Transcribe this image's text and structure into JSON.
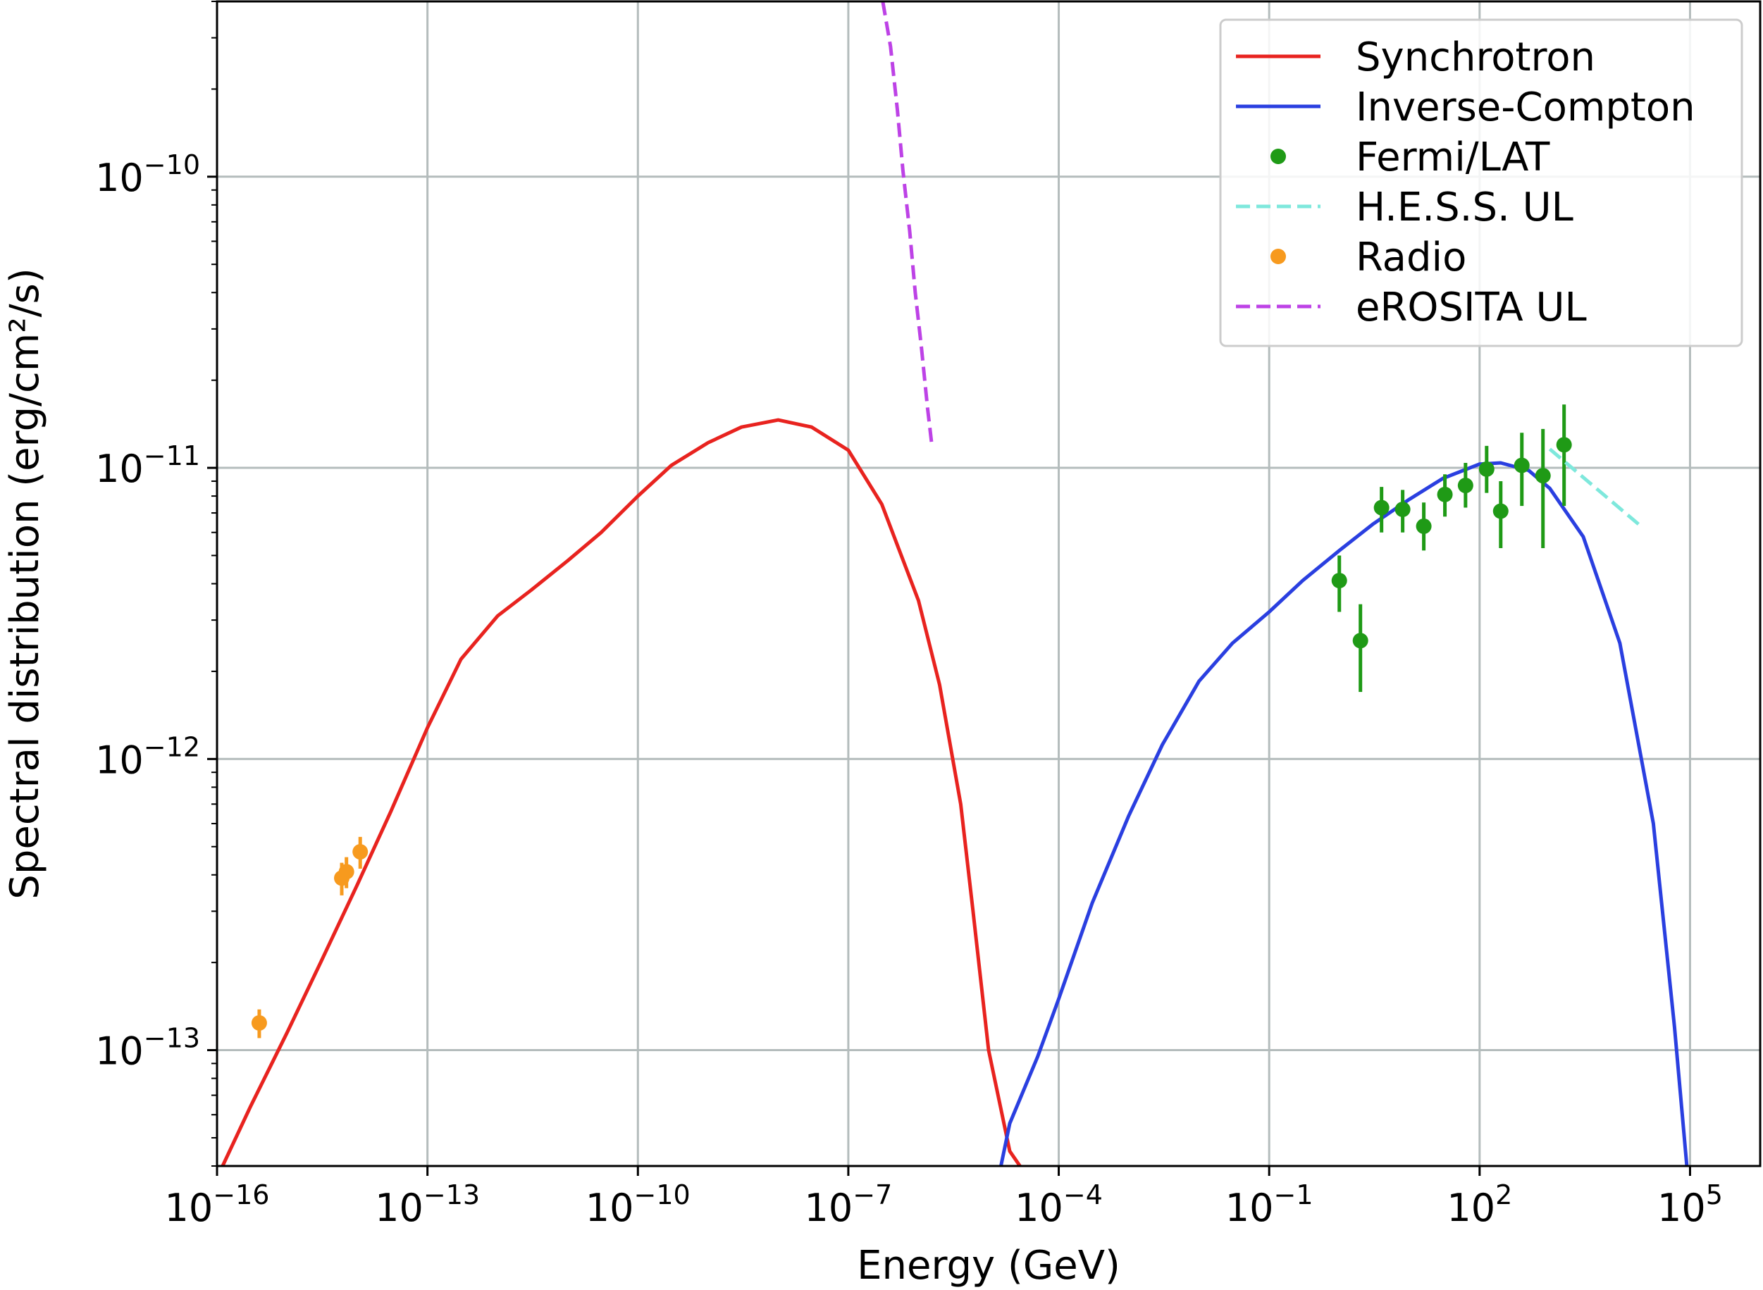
{
  "chart_data": {
    "type": "line",
    "xlabel": "Energy (GeV)",
    "ylabel": "Spectral distribution (erg/cm²/s)",
    "xscale": "log",
    "yscale": "log",
    "xlim": [
      1e-16,
      1000000.0
    ],
    "ylim": [
      4e-14,
      4e-10
    ],
    "grid": true,
    "legend_position": "top-right",
    "colors": {
      "synchrotron": "#e8231f",
      "inverse_compton": "#2a3fe0",
      "fermi": "#1f9a16",
      "hess": "#7ee8dc",
      "radio": "#f79a1e",
      "erosita": "#bd42e6",
      "grid": "#b4bcbc"
    },
    "x_ticks": [
      {
        "base": "10",
        "exp": "−16",
        "value": 1e-16
      },
      {
        "base": "10",
        "exp": "−13",
        "value": 1e-13
      },
      {
        "base": "10",
        "exp": "−10",
        "value": 1e-10
      },
      {
        "base": "10",
        "exp": "−7",
        "value": 1e-07
      },
      {
        "base": "10",
        "exp": "−4",
        "value": 0.0001
      },
      {
        "base": "10",
        "exp": "−1",
        "value": 0.1
      },
      {
        "base": "10",
        "exp": "2",
        "value": 100.0
      },
      {
        "base": "10",
        "exp": "5",
        "value": 100000.0
      }
    ],
    "y_ticks": [
      {
        "base": "10",
        "exp": "−10",
        "value": 1e-10
      },
      {
        "base": "10",
        "exp": "−11",
        "value": 1e-11
      },
      {
        "base": "10",
        "exp": "−12",
        "value": 1e-12
      },
      {
        "base": "10",
        "exp": "−13",
        "value": 1e-13
      }
    ],
    "series": [
      {
        "name": "Synchrotron",
        "kind": "line",
        "color_key": "synchrotron",
        "x": [
          1.2e-16,
          3e-16,
          1e-15,
          3e-15,
          1e-14,
          3e-14,
          1e-13,
          3e-13,
          1e-12,
          3e-12,
          1e-11,
          3e-11,
          1e-10,
          3e-10,
          1e-09,
          3e-09,
          1e-08,
          3e-08,
          1e-07,
          3e-07,
          1e-06,
          2e-06,
          4e-06,
          6e-06,
          1e-05,
          2e-05,
          2.8e-05
        ],
        "y": [
          4e-14,
          6.4e-14,
          1.15e-13,
          2e-13,
          3.7e-13,
          6.6e-13,
          1.28e-12,
          2.2e-12,
          3.1e-12,
          3.8e-12,
          4.8e-12,
          6e-12,
          8e-12,
          1.02e-11,
          1.22e-11,
          1.38e-11,
          1.46e-11,
          1.38e-11,
          1.15e-11,
          7.5e-12,
          3.5e-12,
          1.8e-12,
          7e-13,
          3e-13,
          1e-13,
          4.5e-14,
          4e-14
        ]
      },
      {
        "name": "Inverse-Compton",
        "kind": "line",
        "color_key": "inverse_compton",
        "x": [
          1.5e-05,
          2e-05,
          5e-05,
          0.0001,
          0.0003,
          0.001,
          0.003,
          0.01,
          0.03,
          0.1,
          0.3,
          1,
          3,
          10,
          30,
          100,
          200,
          500,
          1000,
          3000,
          10000,
          30000,
          60000,
          90000
        ],
        "y": [
          4e-14,
          5.6e-14,
          9.5e-14,
          1.5e-13,
          3.2e-13,
          6.4e-13,
          1.12e-12,
          1.85e-12,
          2.5e-12,
          3.2e-12,
          4.1e-12,
          5.2e-12,
          6.4e-12,
          7.8e-12,
          9.2e-12,
          1.03e-11,
          1.04e-11,
          9.8e-12,
          8.5e-12,
          5.8e-12,
          2.5e-12,
          6e-13,
          1.2e-13,
          4e-14
        ]
      },
      {
        "name": "Fermi/LAT",
        "kind": "errorbar",
        "color_key": "fermi",
        "points": [
          {
            "x": 1.0,
            "y": 4.1e-12,
            "lo": 3.2e-12,
            "hi": 5e-12
          },
          {
            "x": 2.0,
            "y": 2.55e-12,
            "lo": 1.7e-12,
            "hi": 3.4e-12
          },
          {
            "x": 4.0,
            "y": 7.3e-12,
            "lo": 6e-12,
            "hi": 8.6e-12
          },
          {
            "x": 8.0,
            "y": 7.2e-12,
            "lo": 6e-12,
            "hi": 8.4e-12
          },
          {
            "x": 16.0,
            "y": 6.3e-12,
            "lo": 5.2e-12,
            "hi": 7.6e-12
          },
          {
            "x": 32.0,
            "y": 8.1e-12,
            "lo": 6.8e-12,
            "hi": 9.5e-12
          },
          {
            "x": 63.0,
            "y": 8.7e-12,
            "lo": 7.3e-12,
            "hi": 1.04e-11
          },
          {
            "x": 126.0,
            "y": 9.9e-12,
            "lo": 8.2e-12,
            "hi": 1.19e-11
          },
          {
            "x": 200.0,
            "y": 7.1e-12,
            "lo": 5.3e-12,
            "hi": 9e-12
          },
          {
            "x": 400.0,
            "y": 1.02e-11,
            "lo": 7.4e-12,
            "hi": 1.32e-11
          },
          {
            "x": 800.0,
            "y": 9.4e-12,
            "lo": 5.3e-12,
            "hi": 1.36e-11
          },
          {
            "x": 1600.0,
            "y": 1.2e-11,
            "lo": 7.4e-12,
            "hi": 1.65e-11
          }
        ]
      },
      {
        "name": "H.E.S.S. UL",
        "kind": "dashed",
        "color_key": "hess",
        "x": [
          1000,
          20000
        ],
        "y": [
          1.16e-11,
          6.3e-12
        ]
      },
      {
        "name": "Radio",
        "kind": "errorbar",
        "color_key": "radio",
        "points": [
          {
            "x": 4e-16,
            "y": 1.24e-13,
            "lo": 1.1e-13,
            "hi": 1.38e-13
          },
          {
            "x": 6e-15,
            "y": 3.9e-13,
            "lo": 3.4e-13,
            "hi": 4.4e-13
          },
          {
            "x": 7e-15,
            "y": 4.1e-13,
            "lo": 3.6e-13,
            "hi": 4.6e-13
          },
          {
            "x": 1.1e-14,
            "y": 4.8e-13,
            "lo": 4.2e-13,
            "hi": 5.4e-13
          }
        ]
      },
      {
        "name": "eROSITA UL",
        "kind": "dashed",
        "color_key": "erosita",
        "x": [
          3.1e-07,
          4e-07,
          5e-07,
          6e-07,
          7.5e-07,
          9e-07,
          1.1e-06,
          1.35e-06,
          1.55e-06
        ],
        "y": [
          4e-10,
          2.8e-10,
          1.7e-10,
          1.05e-10,
          6.5e-11,
          4e-11,
          2.6e-11,
          1.6e-11,
          1.2e-11
        ]
      }
    ],
    "legend": [
      {
        "label": "Synchrotron",
        "style": "line",
        "color_key": "synchrotron"
      },
      {
        "label": "Inverse-Compton",
        "style": "line",
        "color_key": "inverse_compton"
      },
      {
        "label": "Fermi/LAT",
        "style": "dot",
        "color_key": "fermi"
      },
      {
        "label": "H.E.S.S. UL",
        "style": "dashed",
        "color_key": "hess"
      },
      {
        "label": "Radio",
        "style": "dot",
        "color_key": "radio"
      },
      {
        "label": "eROSITA UL",
        "style": "dashed",
        "color_key": "erosita"
      }
    ]
  }
}
